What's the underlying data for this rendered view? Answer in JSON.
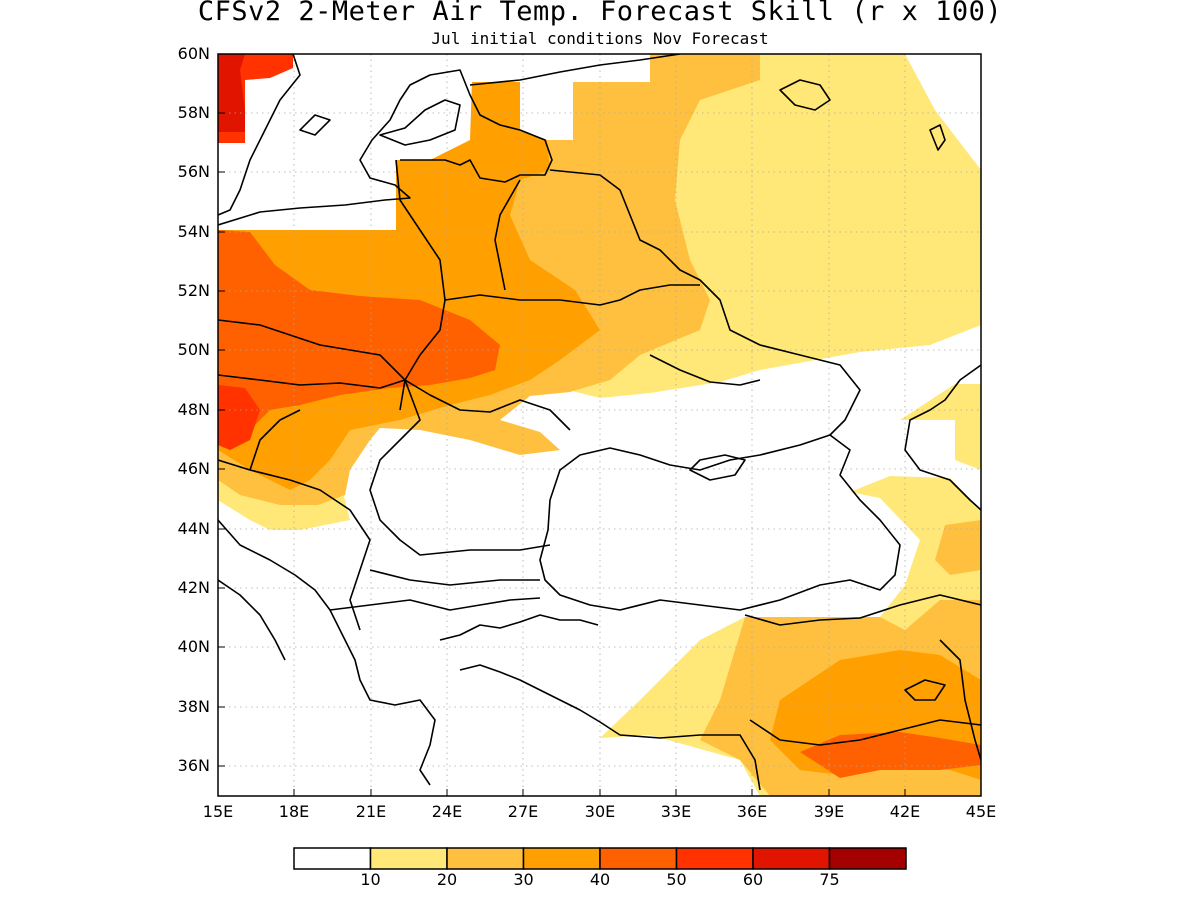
{
  "title": "CFSv2 2-Meter Air Temp. Forecast Skill (r x 100)",
  "subtitle": "Jul initial conditions  Nov Forecast",
  "lat_labels": [
    "60N",
    "58N",
    "56N",
    "54N",
    "52N",
    "50N",
    "48N",
    "46N",
    "44N",
    "42N",
    "40N",
    "38N",
    "36N"
  ],
  "lon_labels": [
    "15E",
    "18E",
    "21E",
    "24E",
    "27E",
    "30E",
    "33E",
    "36E",
    "39E",
    "42E",
    "45E"
  ],
  "colorbar": {
    "colors": [
      "#ffffff",
      "#ffe878",
      "#ffc040",
      "#ffa000",
      "#ff6000",
      "#ff3200",
      "#e11400",
      "#a50000"
    ],
    "labels": [
      "10",
      "20",
      "30",
      "40",
      "50",
      "60",
      "75"
    ]
  },
  "legend_ranges": {
    "lon_min": 15,
    "lon_max": 45,
    "lat_min": 35,
    "lat_max": 60
  }
}
